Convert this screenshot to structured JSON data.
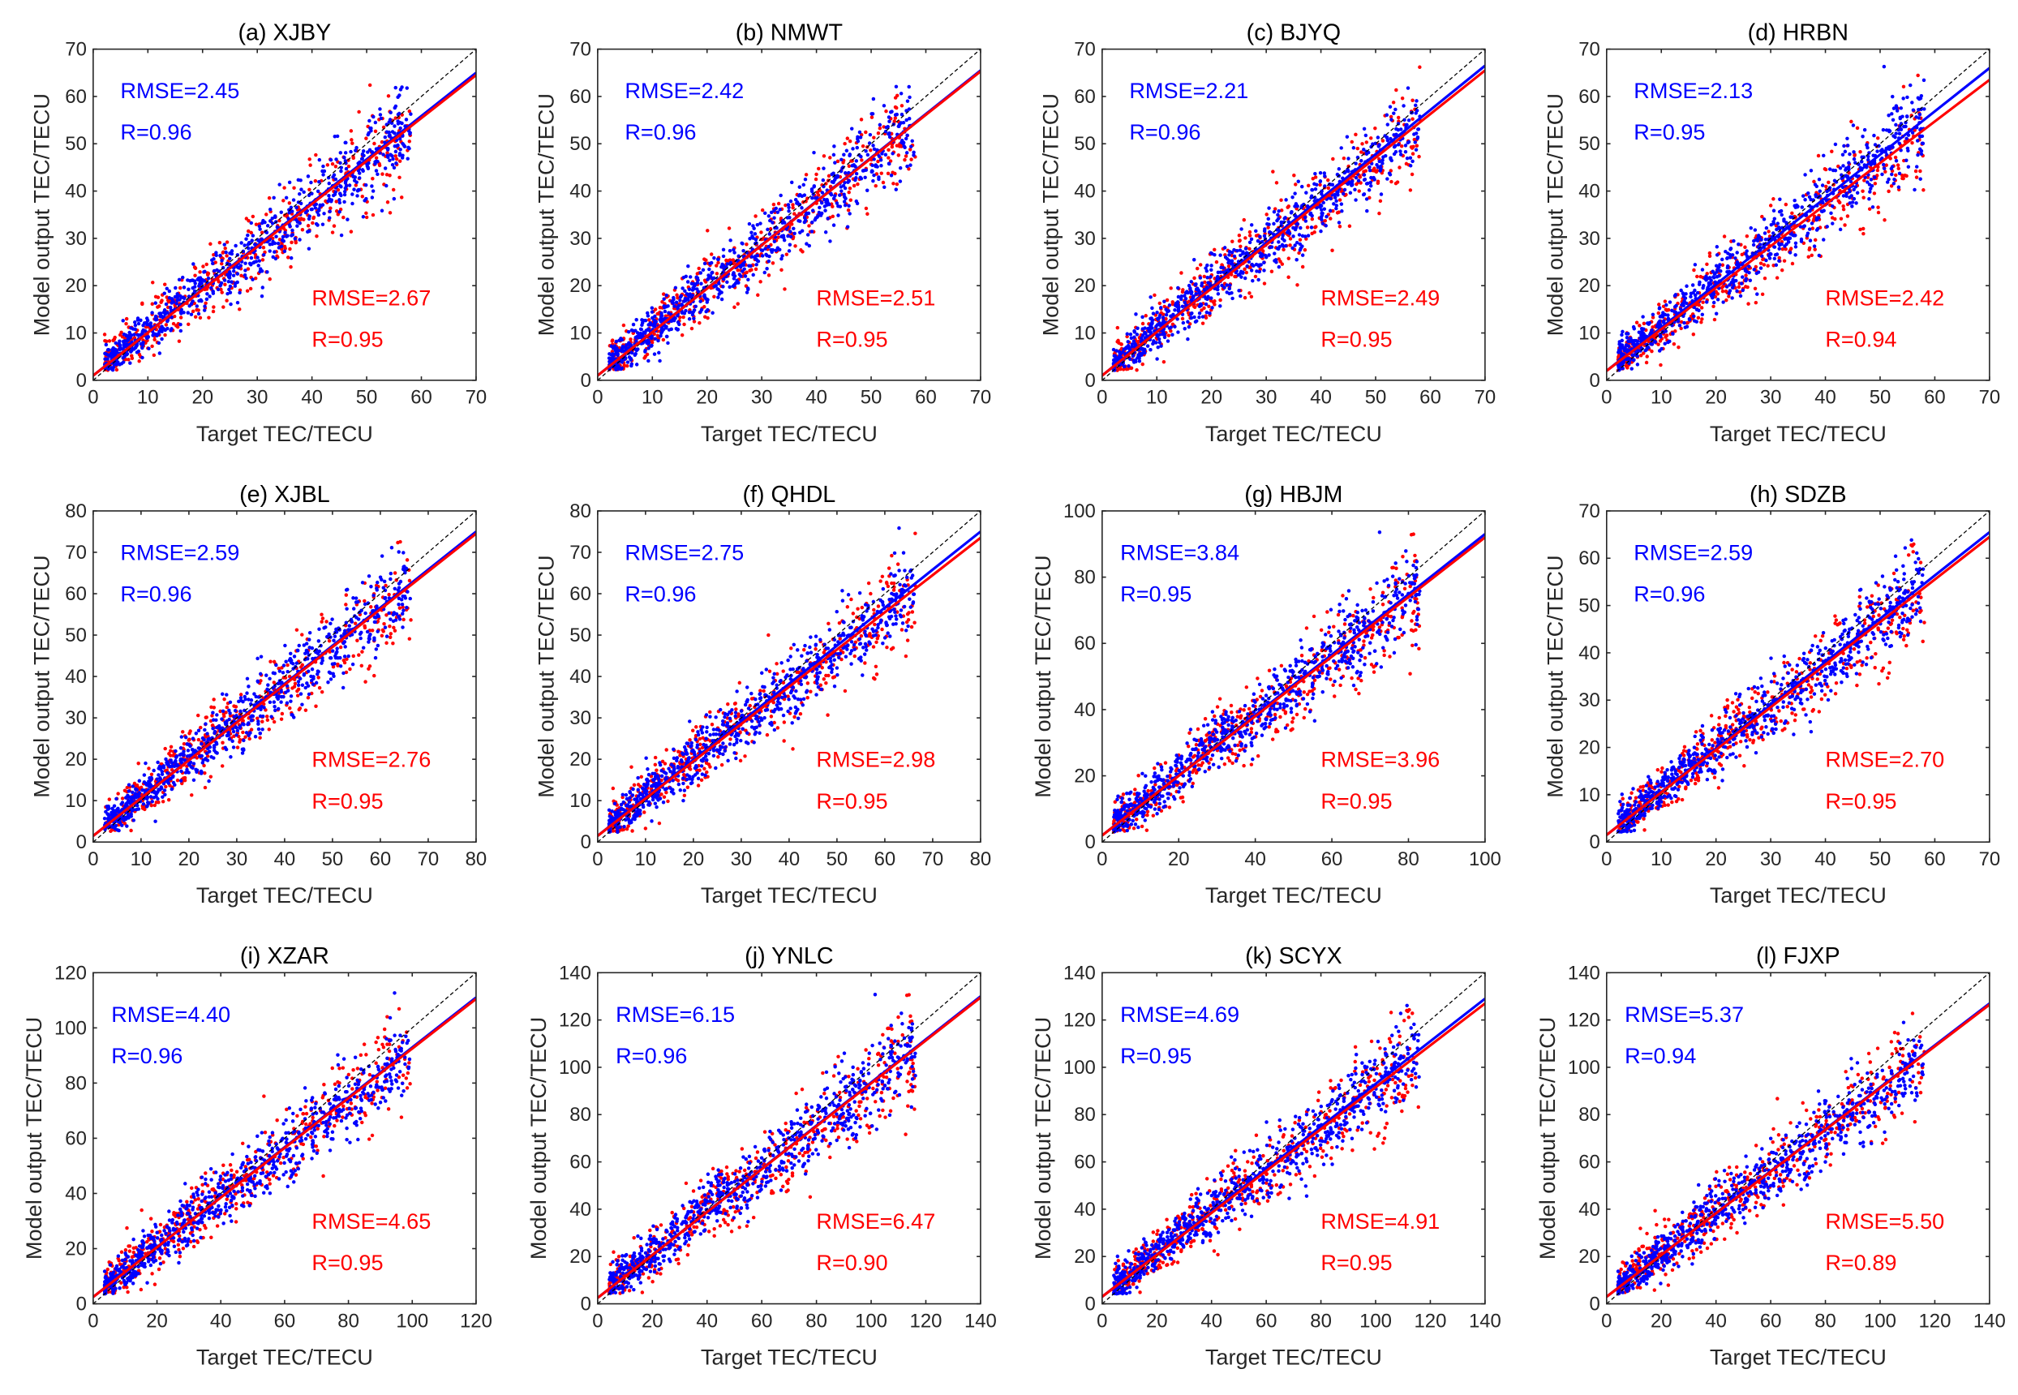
{
  "chart_data": {
    "type": "scatter",
    "xlabel": "Target TEC/TECU",
    "ylabel": "Model output TEC/TECU",
    "colors": {
      "series_a": "#0000ff",
      "series_b": "#ff0000",
      "reference": "#000000"
    },
    "reference_line": "y = x (dashed)",
    "panels": [
      {
        "title": "(a) XJBY",
        "lim": [
          0,
          70
        ],
        "ticks": [
          0,
          10,
          20,
          30,
          40,
          50,
          60,
          70
        ],
        "blue": {
          "rmse": "RMSE=2.45",
          "r": "R=0.96",
          "fit": [
            1.0,
            65.0
          ]
        },
        "red": {
          "rmse": "RMSE=2.67",
          "r": "R=0.95",
          "fit": [
            1.0,
            64.5
          ]
        }
      },
      {
        "title": "(b) NMWT",
        "lim": [
          0,
          70
        ],
        "ticks": [
          0,
          10,
          20,
          30,
          40,
          50,
          60,
          70
        ],
        "blue": {
          "rmse": "RMSE=2.42",
          "r": "R=0.96",
          "fit": [
            1.0,
            65.5
          ]
        },
        "red": {
          "rmse": "RMSE=2.51",
          "r": "R=0.95",
          "fit": [
            1.0,
            65.3
          ]
        }
      },
      {
        "title": "(c) BJYQ",
        "lim": [
          0,
          70
        ],
        "ticks": [
          0,
          10,
          20,
          30,
          40,
          50,
          60,
          70
        ],
        "blue": {
          "rmse": "RMSE=2.21",
          "r": "R=0.96",
          "fit": [
            1.0,
            66.5
          ]
        },
        "red": {
          "rmse": "RMSE=2.49",
          "r": "R=0.95",
          "fit": [
            1.0,
            65.5
          ]
        }
      },
      {
        "title": "(d) HRBN",
        "lim": [
          0,
          70
        ],
        "ticks": [
          0,
          10,
          20,
          30,
          40,
          50,
          60,
          70
        ],
        "blue": {
          "rmse": "RMSE=2.13",
          "r": "R=0.95",
          "fit": [
            2.0,
            66.0
          ]
        },
        "red": {
          "rmse": "RMSE=2.42",
          "r": "R=0.94",
          "fit": [
            2.0,
            63.5
          ]
        }
      },
      {
        "title": "(e) XJBL",
        "lim": [
          0,
          80
        ],
        "ticks": [
          0,
          10,
          20,
          30,
          40,
          50,
          60,
          70,
          80
        ],
        "blue": {
          "rmse": "RMSE=2.59",
          "r": "R=0.96",
          "fit": [
            1.5,
            75.0
          ]
        },
        "red": {
          "rmse": "RMSE=2.76",
          "r": "R=0.95",
          "fit": [
            1.5,
            74.5
          ]
        }
      },
      {
        "title": "(f) QHDL",
        "lim": [
          0,
          80
        ],
        "ticks": [
          0,
          10,
          20,
          30,
          40,
          50,
          60,
          70,
          80
        ],
        "blue": {
          "rmse": "RMSE=2.75",
          "r": "R=0.96",
          "fit": [
            1.5,
            75.0
          ]
        },
        "red": {
          "rmse": "RMSE=2.98",
          "r": "R=0.95",
          "fit": [
            1.5,
            73.5
          ]
        }
      },
      {
        "title": "(g) HBJM",
        "lim": [
          0,
          100
        ],
        "ticks": [
          0,
          20,
          40,
          60,
          80,
          100
        ],
        "blue": {
          "rmse": "RMSE=3.84",
          "r": "R=0.95",
          "fit": [
            2.0,
            93.0
          ]
        },
        "red": {
          "rmse": "RMSE=3.96",
          "r": "R=0.95",
          "fit": [
            2.0,
            92.0
          ]
        }
      },
      {
        "title": "(h) SDZB",
        "lim": [
          0,
          70
        ],
        "ticks": [
          0,
          10,
          20,
          30,
          40,
          50,
          60,
          70
        ],
        "blue": {
          "rmse": "RMSE=2.59",
          "r": "R=0.96",
          "fit": [
            1.5,
            65.5
          ]
        },
        "red": {
          "rmse": "RMSE=2.70",
          "r": "R=0.95",
          "fit": [
            1.5,
            64.5
          ]
        }
      },
      {
        "title": "(i) XZAR",
        "lim": [
          0,
          120
        ],
        "ticks": [
          0,
          20,
          40,
          60,
          80,
          100,
          120
        ],
        "blue": {
          "rmse": "RMSE=4.40",
          "r": "R=0.96",
          "fit": [
            2.5,
            111.0
          ]
        },
        "red": {
          "rmse": "RMSE=4.65",
          "r": "R=0.95",
          "fit": [
            2.5,
            110.5
          ]
        }
      },
      {
        "title": "(j) YNLC",
        "lim": [
          0,
          140
        ],
        "ticks": [
          0,
          20,
          40,
          60,
          80,
          100,
          120,
          140
        ],
        "blue": {
          "rmse": "RMSE=6.15",
          "r": "R=0.96",
          "fit": [
            2.5,
            130.0
          ]
        },
        "red": {
          "rmse": "RMSE=6.47",
          "r": "R=0.90",
          "fit": [
            2.5,
            129.5
          ]
        }
      },
      {
        "title": "(k) SCYX",
        "lim": [
          0,
          140
        ],
        "ticks": [
          0,
          20,
          40,
          60,
          80,
          100,
          120,
          140
        ],
        "blue": {
          "rmse": "RMSE=4.69",
          "r": "R=0.95",
          "fit": [
            3.0,
            129.0
          ]
        },
        "red": {
          "rmse": "RMSE=4.91",
          "r": "R=0.95",
          "fit": [
            3.0,
            127.0
          ]
        }
      },
      {
        "title": "(l) FJXP",
        "lim": [
          0,
          140
        ],
        "ticks": [
          0,
          20,
          40,
          60,
          80,
          100,
          120,
          140
        ],
        "blue": {
          "rmse": "RMSE=5.37",
          "r": "R=0.94",
          "fit": [
            3.0,
            127.0
          ]
        },
        "red": {
          "rmse": "RMSE=5.50",
          "r": "R=0.89",
          "fit": [
            3.0,
            126.5
          ]
        }
      }
    ]
  }
}
